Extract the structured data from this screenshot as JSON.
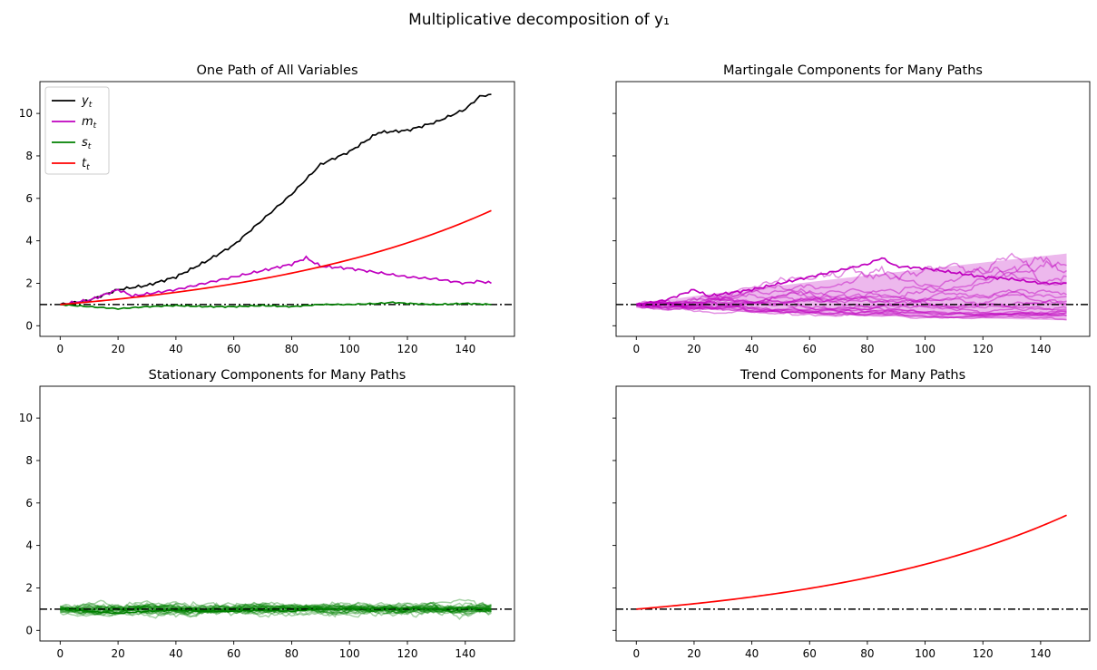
{
  "figure": {
    "suptitle": "Multiplicative decomposition of y₁"
  },
  "chart_data": [
    {
      "type": "line",
      "title": "One Path of All Variables",
      "xlim": [
        -7,
        157
      ],
      "ylim": [
        -0.5,
        11.5
      ],
      "xticks": [
        0,
        20,
        40,
        60,
        80,
        100,
        120,
        140
      ],
      "yticks": [
        0,
        2,
        4,
        6,
        8,
        10
      ],
      "reference_line": 1,
      "legend": "top-left",
      "series": [
        {
          "name": "y_t",
          "color": "#000000",
          "x": [
            0,
            10,
            20,
            30,
            40,
            50,
            60,
            70,
            80,
            90,
            100,
            110,
            120,
            130,
            140,
            145,
            149
          ],
          "y": [
            1.0,
            1.2,
            1.7,
            1.9,
            2.3,
            3.0,
            3.8,
            5.0,
            6.2,
            7.6,
            8.2,
            9.1,
            9.2,
            9.6,
            10.2,
            10.8,
            10.9
          ]
        },
        {
          "name": "m_t",
          "color": "#bf00bf",
          "x": [
            0,
            10,
            20,
            25,
            30,
            40,
            50,
            60,
            70,
            80,
            85,
            90,
            100,
            110,
            120,
            130,
            140,
            145,
            149
          ],
          "y": [
            1.0,
            1.2,
            1.7,
            1.4,
            1.5,
            1.7,
            2.0,
            2.3,
            2.6,
            2.9,
            3.2,
            2.8,
            2.7,
            2.5,
            2.3,
            2.2,
            2.0,
            2.1,
            2.0
          ]
        },
        {
          "name": "s_t",
          "color": "#008000",
          "x": [
            0,
            10,
            20,
            30,
            40,
            50,
            60,
            70,
            80,
            90,
            100,
            110,
            115,
            120,
            130,
            140,
            149
          ],
          "y": [
            1.0,
            0.9,
            0.8,
            0.9,
            0.95,
            0.9,
            0.9,
            0.95,
            0.9,
            1.0,
            1.0,
            1.05,
            1.1,
            1.05,
            1.0,
            1.05,
            1.0
          ]
        },
        {
          "name": "t_t",
          "color": "#ff0000",
          "growth": 0.01135,
          "x": [
            0,
            149
          ],
          "y": [
            1.0,
            5.4
          ]
        }
      ]
    },
    {
      "type": "line",
      "title": "Martingale Components for Many Paths",
      "xlim": [
        -7,
        157
      ],
      "ylim": [
        -0.5,
        11.5
      ],
      "xticks": [
        0,
        20,
        40,
        60,
        80,
        100,
        120,
        140
      ],
      "reference_line": 1,
      "band": {
        "x": [
          0,
          149
        ],
        "upper": [
          1.0,
          3.4
        ],
        "lower": [
          1.0,
          0.25
        ],
        "color": "#bf00bf"
      },
      "series": [
        {
          "color": "#bf00bf",
          "x": [
            0,
            10,
            20,
            25,
            30,
            40,
            50,
            60,
            70,
            80,
            85,
            90,
            100,
            110,
            120,
            130,
            140,
            149
          ],
          "y": [
            1.0,
            1.2,
            1.7,
            1.4,
            1.5,
            1.7,
            2.0,
            2.3,
            2.6,
            2.9,
            3.2,
            2.8,
            2.7,
            2.5,
            2.3,
            2.2,
            2.0,
            2.0
          ]
        }
      ]
    },
    {
      "type": "line",
      "title": "Stationary Components for Many Paths",
      "xlim": [
        -7,
        157
      ],
      "ylim": [
        -0.5,
        11.5
      ],
      "xticks": [
        0,
        20,
        40,
        60,
        80,
        100,
        120,
        140
      ],
      "yticks": [
        0,
        2,
        4,
        6,
        8,
        10
      ],
      "reference_line": 1,
      "series": [
        {
          "color": "#008000",
          "x": [
            0,
            10,
            20,
            30,
            40,
            50,
            60,
            70,
            80,
            90,
            100,
            110,
            120,
            130,
            140,
            149
          ],
          "y": [
            1.0,
            0.9,
            0.8,
            0.9,
            0.95,
            0.9,
            0.9,
            0.95,
            0.9,
            1.0,
            1.0,
            1.05,
            1.05,
            1.0,
            1.05,
            1.0
          ]
        }
      ]
    },
    {
      "type": "line",
      "title": "Trend Components for Many Paths",
      "xlim": [
        -7,
        157
      ],
      "ylim": [
        -0.5,
        11.5
      ],
      "xticks": [
        0,
        20,
        40,
        60,
        80,
        100,
        120,
        140
      ],
      "reference_line": 1,
      "series": [
        {
          "color": "#ff0000",
          "growth": 0.01135,
          "x": [
            0,
            149
          ],
          "y": [
            1.0,
            5.4
          ]
        }
      ]
    }
  ]
}
